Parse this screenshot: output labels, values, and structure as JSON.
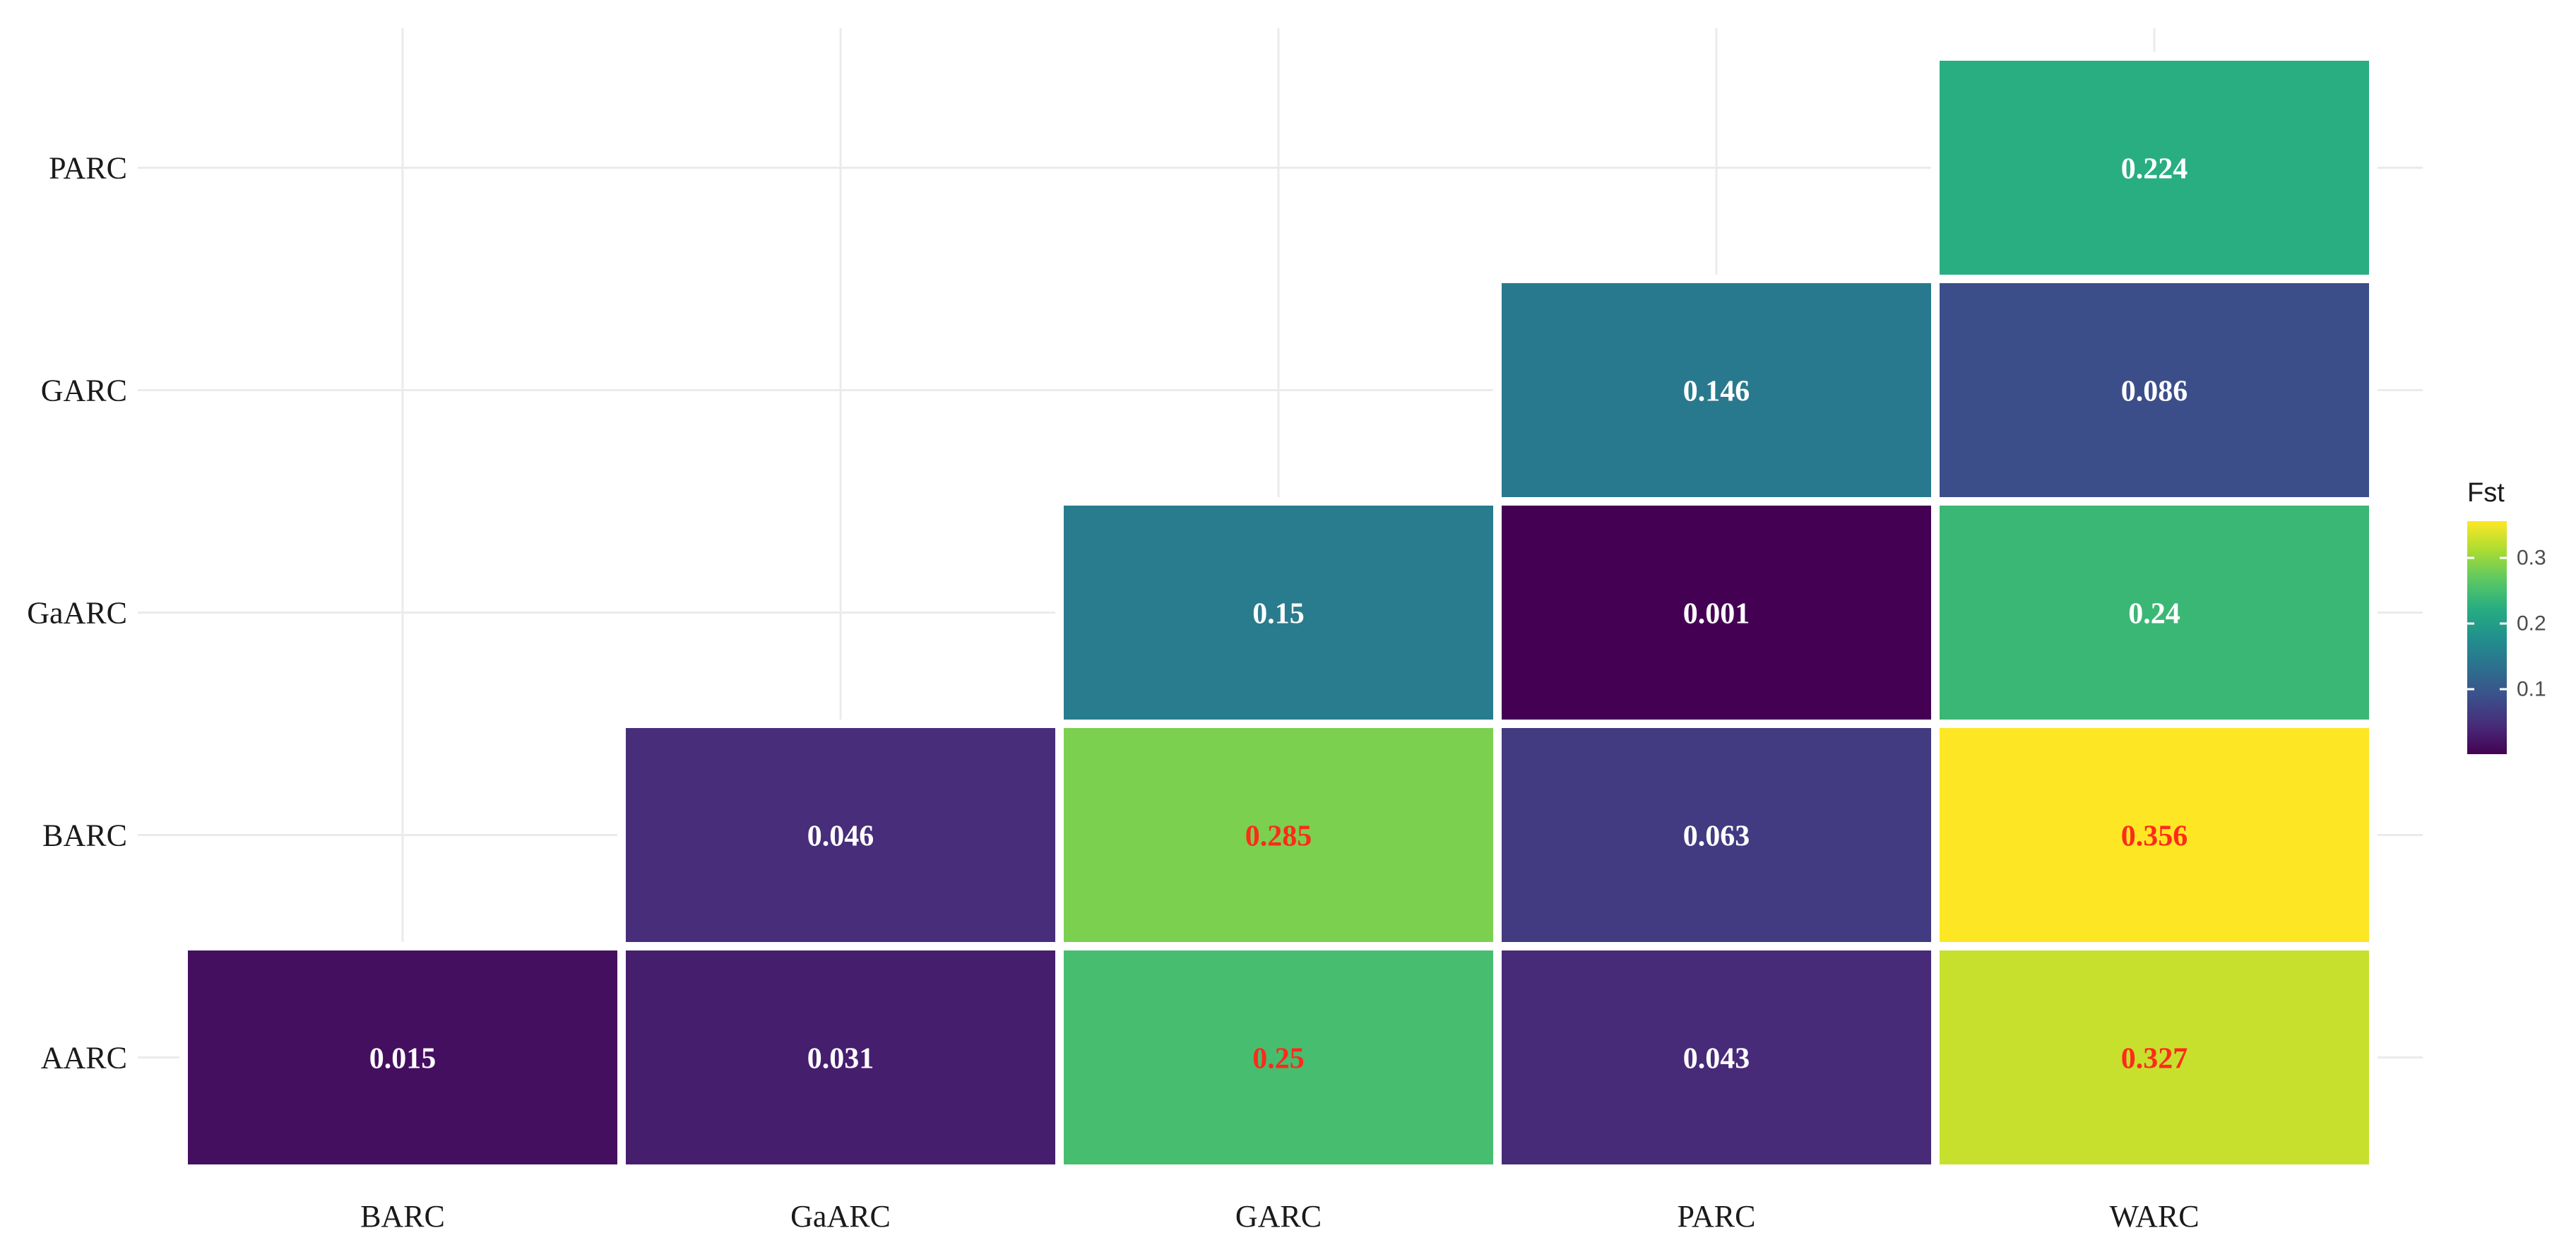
{
  "chart_data": {
    "type": "heatmap",
    "x_categories": [
      "BARC",
      "GaARC",
      "GARC",
      "PARC",
      "WARC"
    ],
    "y_categories": [
      "AARC",
      "BARC",
      "GaARC",
      "GARC",
      "PARC"
    ],
    "cells": [
      {
        "x": "BARC",
        "y": "AARC",
        "value": 0.015,
        "label": "0.015",
        "label_color": "#ffffff"
      },
      {
        "x": "GaARC",
        "y": "AARC",
        "value": 0.031,
        "label": "0.031",
        "label_color": "#ffffff"
      },
      {
        "x": "GARC",
        "y": "AARC",
        "value": 0.25,
        "label": "0.25",
        "label_color": "#ff2a1a"
      },
      {
        "x": "PARC",
        "y": "AARC",
        "value": 0.043,
        "label": "0.043",
        "label_color": "#ffffff"
      },
      {
        "x": "WARC",
        "y": "AARC",
        "value": 0.327,
        "label": "0.327",
        "label_color": "#ff2a1a"
      },
      {
        "x": "GaARC",
        "y": "BARC",
        "value": 0.046,
        "label": "0.046",
        "label_color": "#ffffff"
      },
      {
        "x": "GARC",
        "y": "BARC",
        "value": 0.285,
        "label": "0.285",
        "label_color": "#ff2a1a"
      },
      {
        "x": "PARC",
        "y": "BARC",
        "value": 0.063,
        "label": "0.063",
        "label_color": "#ffffff"
      },
      {
        "x": "WARC",
        "y": "BARC",
        "value": 0.356,
        "label": "0.356",
        "label_color": "#ff2a1a"
      },
      {
        "x": "GARC",
        "y": "GaARC",
        "value": 0.15,
        "label": "0.15",
        "label_color": "#ffffff"
      },
      {
        "x": "PARC",
        "y": "GaARC",
        "value": 0.001,
        "label": "0.001",
        "label_color": "#ffffff"
      },
      {
        "x": "WARC",
        "y": "GaARC",
        "value": 0.24,
        "label": "0.24",
        "label_color": "#ffffff"
      },
      {
        "x": "PARC",
        "y": "GARC",
        "value": 0.146,
        "label": "0.146",
        "label_color": "#ffffff"
      },
      {
        "x": "WARC",
        "y": "GARC",
        "value": 0.086,
        "label": "0.086",
        "label_color": "#ffffff"
      },
      {
        "x": "WARC",
        "y": "PARC",
        "value": 0.224,
        "label": "0.224",
        "label_color": "#ffffff"
      }
    ],
    "legend": {
      "title": "Fst",
      "breaks": [
        0.1,
        0.2,
        0.3
      ],
      "break_labels": [
        "0.1",
        "0.2",
        "0.3"
      ],
      "range": [
        0.001,
        0.356
      ],
      "palette": "viridis",
      "placement": "right"
    },
    "grid": true,
    "title": "",
    "xlabel": "",
    "ylabel": ""
  }
}
